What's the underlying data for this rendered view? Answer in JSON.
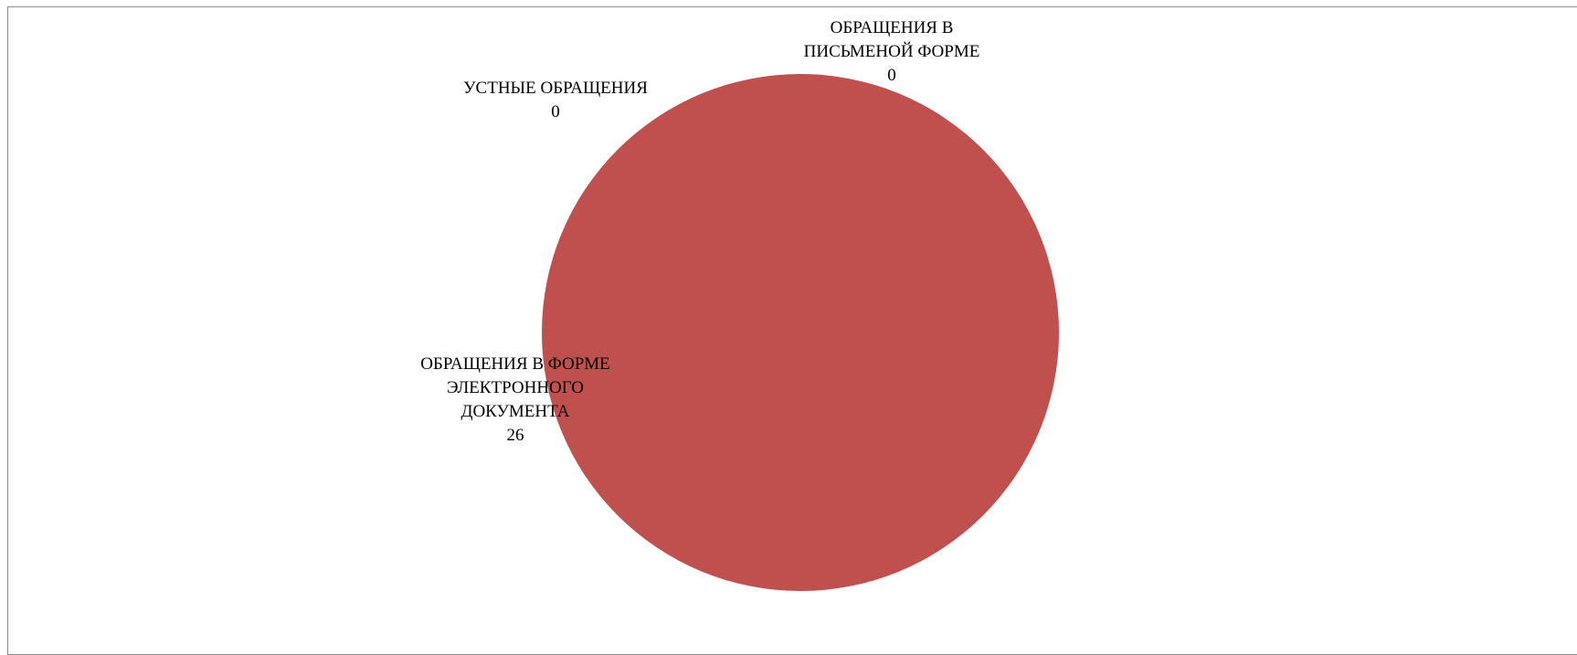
{
  "chart_data": {
    "type": "pie",
    "title": "",
    "categories": [
      "УСТНЫЕ ОБРАЩЕНИЯ",
      "ОБРАЩЕНИЯ В ПИСЬМЕНОЙ ФОРМЕ",
      "ОБРАЩЕНИЯ В ФОРМЕ ЭЛЕКТРОННОГО ДОКУМЕНТА"
    ],
    "values": [
      0,
      0,
      26
    ],
    "colors": [
      "#4f81bd",
      "#4f81bd",
      "#c0504d"
    ],
    "labels": [
      {
        "lines": [
          "УСТНЫЕ ОБРАЩЕНИЯ"
        ],
        "value": "0"
      },
      {
        "lines": [
          "ОБРАЩЕНИЯ В",
          "ПИСЬМЕНОЙ ФОРМЕ"
        ],
        "value": "0"
      },
      {
        "lines": [
          "ОБРАЩЕНИЯ В ФОРМЕ",
          "ЭЛЕКТРОННОГО",
          "ДОКУМЕНТА"
        ],
        "value": "26"
      }
    ],
    "legend": "none"
  }
}
